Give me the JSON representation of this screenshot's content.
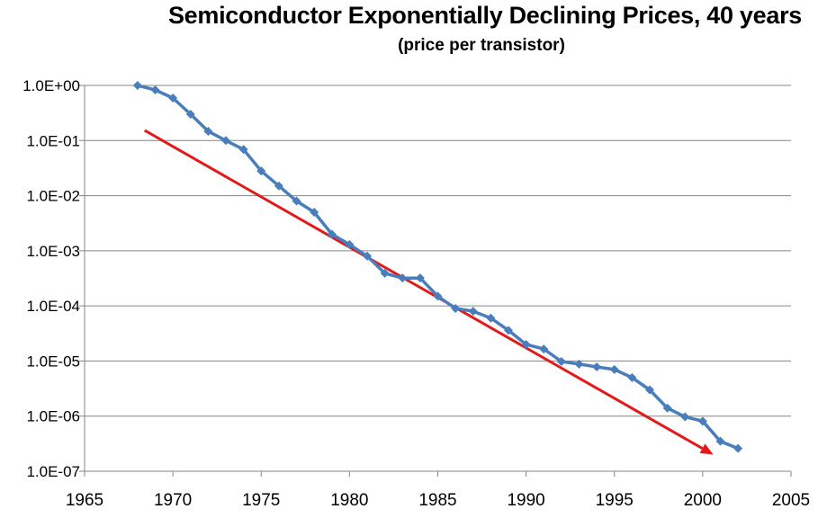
{
  "chart_data": {
    "type": "line",
    "title": "Semiconductor Exponentially Declining Prices, 40 years",
    "subtitle": "(price per transistor)",
    "xlabel": "",
    "ylabel": "",
    "xlim": [
      1965,
      2005
    ],
    "ylim": [
      1e-07,
      1
    ],
    "yscale": "log",
    "grid": true,
    "x_ticks": [
      1965,
      1970,
      1975,
      1980,
      1985,
      1990,
      1995,
      2000,
      2005
    ],
    "x_tick_labels": [
      "1965",
      "1970",
      "1975",
      "1980",
      "1985",
      "1990",
      "1995",
      "2000",
      "2005"
    ],
    "y_ticks": [
      1,
      0.1,
      0.01,
      0.001,
      0.0001,
      1e-05,
      1e-06,
      1e-07
    ],
    "y_tick_labels": [
      "1.0E+00",
      "1.0E-01",
      "1.0E-02",
      "1.0E-03",
      "1.0E-04",
      "1.0E-05",
      "1.0E-06",
      "1.0E-07"
    ],
    "series": [
      {
        "name": "price per transistor",
        "color": "#4a7ebb",
        "marker": "diamond",
        "x": [
          1968,
          1969,
          1970,
          1971,
          1972,
          1973,
          1974,
          1975,
          1976,
          1977,
          1978,
          1979,
          1980,
          1981,
          1982,
          1983,
          1984,
          1985,
          1986,
          1987,
          1988,
          1989,
          1990,
          1991,
          1992,
          1993,
          1994,
          1995,
          1996,
          1997,
          1998,
          1999,
          2000,
          2001,
          2002
        ],
        "y": [
          1.0,
          0.83,
          0.59,
          0.3,
          0.147,
          0.1,
          0.069,
          0.028,
          0.015,
          0.008,
          0.005,
          0.002,
          0.0013,
          0.0008,
          0.00039,
          0.00032,
          0.00032,
          0.00015,
          9e-05,
          8e-05,
          6e-05,
          3.6e-05,
          2e-05,
          1.65e-05,
          9.8e-06,
          8.8e-06,
          7.8e-06,
          7e-06,
          5e-06,
          3e-06,
          1.4e-06,
          9.7e-07,
          8.1e-07,
          3.5e-07,
          2.6e-07
        ]
      }
    ],
    "annotations": [
      {
        "type": "arrow",
        "description": "trend line",
        "color": "#e31a1c",
        "from": {
          "x": 1968.4,
          "y": 0.153
        },
        "to": {
          "x": 2000.6,
          "y": 2e-07
        }
      }
    ]
  }
}
